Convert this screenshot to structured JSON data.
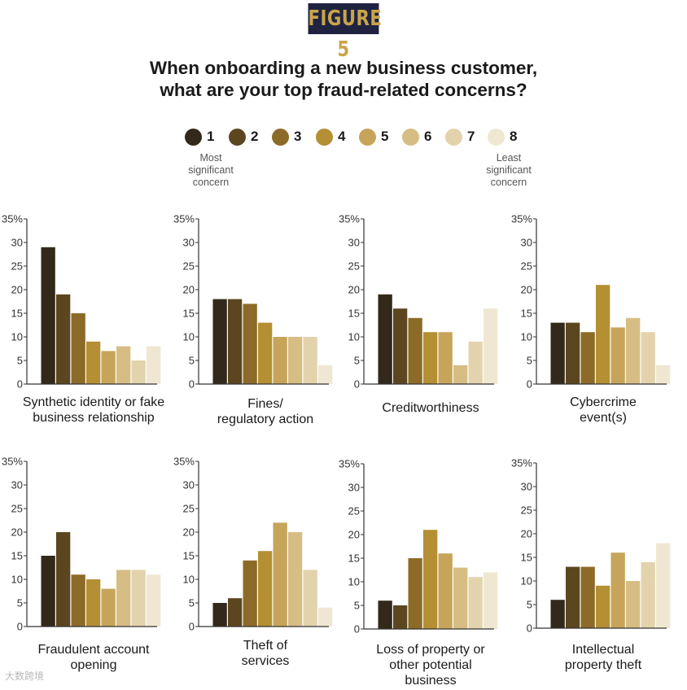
{
  "figure_label": "FIGURE 5",
  "title_lines": [
    "When onboarding a new business customer,",
    "what are your top fraud-related concerns?"
  ],
  "legend": {
    "items": [
      {
        "label": "1",
        "color": "#33291a"
      },
      {
        "label": "2",
        "color": "#5b4620"
      },
      {
        "label": "3",
        "color": "#8c6b28"
      },
      {
        "label": "4",
        "color": "#b48f33"
      },
      {
        "label": "5",
        "color": "#c6a55a"
      },
      {
        "label": "6",
        "color": "#d6bd84"
      },
      {
        "label": "7",
        "color": "#e3d3ad"
      },
      {
        "label": "8",
        "color": "#f0e7d2"
      }
    ],
    "most_note": [
      "Most",
      "significant",
      "concern"
    ],
    "least_note": [
      "Least",
      "significant",
      "concern"
    ]
  },
  "watermark": "大数跨境",
  "chart_data": [
    {
      "type": "bar",
      "title": "Synthetic identity or fake business relationship",
      "label_lines": [
        "Synthetic identity or fake",
        "business relationship"
      ],
      "categories": [
        "1",
        "2",
        "3",
        "4",
        "5",
        "6",
        "7",
        "8"
      ],
      "values": [
        29,
        19,
        15,
        9,
        7,
        8,
        5,
        8
      ],
      "ylim": [
        0,
        35
      ],
      "yticks": [
        "0",
        "5",
        "10",
        "15",
        "20",
        "25",
        "30",
        "35%"
      ]
    },
    {
      "type": "bar",
      "title": "Fines/ regulatory action",
      "label_lines": [
        "Fines/",
        "regulatory action"
      ],
      "categories": [
        "1",
        "2",
        "3",
        "4",
        "5",
        "6",
        "7",
        "8"
      ],
      "values": [
        18,
        18,
        17,
        13,
        10,
        10,
        10,
        4
      ],
      "ylim": [
        0,
        35
      ],
      "yticks": [
        "0",
        "5",
        "10",
        "15",
        "20",
        "25",
        "30",
        "35%"
      ]
    },
    {
      "type": "bar",
      "title": "Creditworthiness",
      "label_lines": [
        "Creditworthiness"
      ],
      "categories": [
        "1",
        "2",
        "3",
        "4",
        "5",
        "6",
        "7",
        "8"
      ],
      "values": [
        19,
        16,
        14,
        11,
        11,
        4,
        9,
        16
      ],
      "ylim": [
        0,
        35
      ],
      "yticks": [
        "0",
        "5",
        "10",
        "15",
        "20",
        "25",
        "30",
        "35%"
      ]
    },
    {
      "type": "bar",
      "title": "Cybercrime event(s)",
      "label_lines": [
        "Cybercrime",
        "event(s)"
      ],
      "categories": [
        "1",
        "2",
        "3",
        "4",
        "5",
        "6",
        "7",
        "8"
      ],
      "values": [
        13,
        13,
        11,
        21,
        12,
        14,
        11,
        4
      ],
      "ylim": [
        0,
        35
      ],
      "yticks": [
        "0",
        "5",
        "10",
        "15",
        "20",
        "25",
        "30",
        "35%"
      ]
    },
    {
      "type": "bar",
      "title": "Fraudulent account opening",
      "label_lines": [
        "Fraudulent account",
        "opening"
      ],
      "categories": [
        "1",
        "2",
        "3",
        "4",
        "5",
        "6",
        "7",
        "8"
      ],
      "values": [
        15,
        20,
        11,
        10,
        8,
        12,
        12,
        11
      ],
      "ylim": [
        0,
        35
      ],
      "yticks": [
        "0",
        "5",
        "10",
        "15",
        "20",
        "25",
        "30",
        "35%"
      ]
    },
    {
      "type": "bar",
      "title": "Theft of services",
      "label_lines": [
        "Theft of",
        "services"
      ],
      "categories": [
        "1",
        "2",
        "3",
        "4",
        "5",
        "6",
        "7",
        "8"
      ],
      "values": [
        5,
        6,
        14,
        16,
        22,
        20,
        12,
        4
      ],
      "ylim": [
        0,
        35
      ],
      "yticks": [
        "0",
        "5",
        "10",
        "15",
        "20",
        "25",
        "30",
        "35%"
      ]
    },
    {
      "type": "bar",
      "title": "Loss of property or other potential business",
      "label_lines": [
        "Loss of property or",
        "other potential",
        "business"
      ],
      "categories": [
        "1",
        "2",
        "3",
        "4",
        "5",
        "6",
        "7",
        "8"
      ],
      "values": [
        6,
        5,
        15,
        21,
        16,
        13,
        11,
        12
      ],
      "ylim": [
        0,
        35
      ],
      "yticks": [
        "0",
        "5",
        "10",
        "15",
        "20",
        "25",
        "30",
        "35%"
      ]
    },
    {
      "type": "bar",
      "title": "Intellectual property theft",
      "label_lines": [
        "Intellectual",
        "property theft"
      ],
      "categories": [
        "1",
        "2",
        "3",
        "4",
        "5",
        "6",
        "7",
        "8"
      ],
      "values": [
        6,
        13,
        13,
        9,
        16,
        10,
        14,
        18
      ],
      "ylim": [
        0,
        35
      ],
      "yticks": [
        "0",
        "5",
        "10",
        "15",
        "20",
        "25",
        "30",
        "35%"
      ]
    }
  ]
}
